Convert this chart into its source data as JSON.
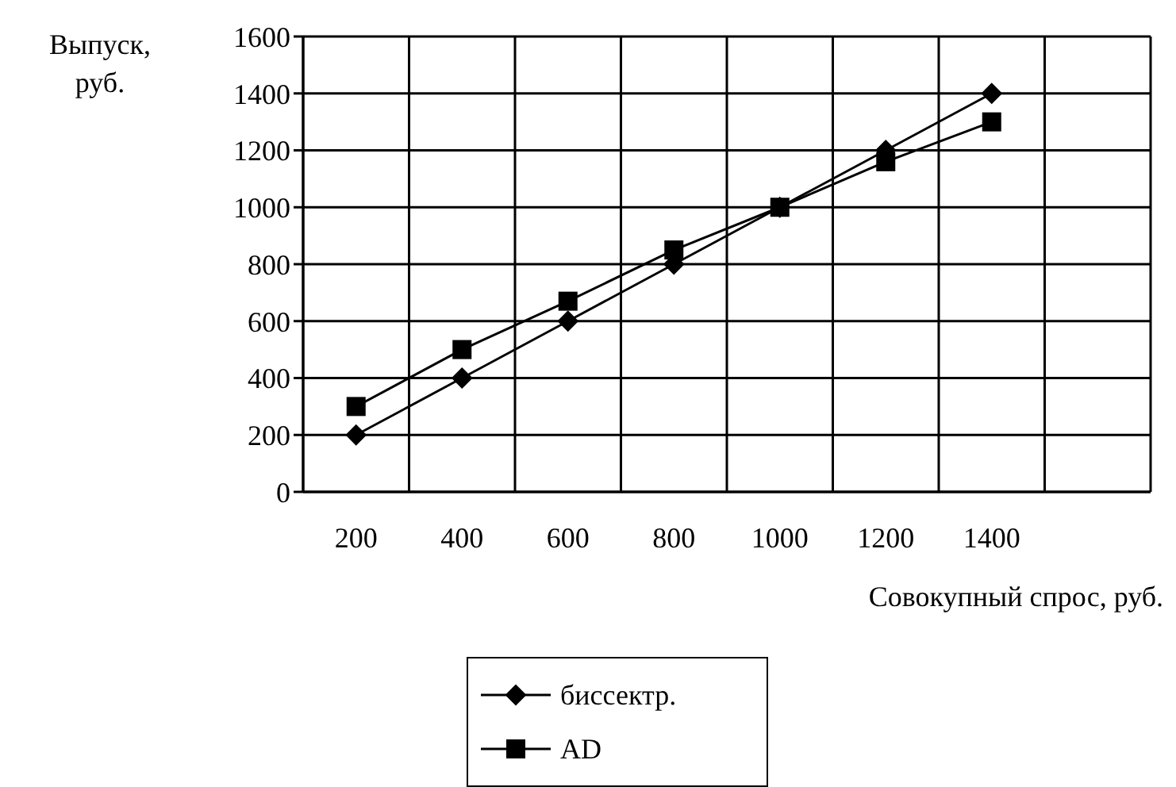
{
  "chart_data": {
    "type": "line",
    "xlabel": "Совокупный спрос, руб.",
    "ylabel": "Выпуск, руб.",
    "categories": [
      "200",
      "400",
      "600",
      "800",
      "1000",
      "1200",
      "1400",
      null
    ],
    "series": [
      {
        "name": "биссектр.",
        "color": "#000000",
        "marker": "diamond",
        "values": [
          200,
          400,
          600,
          800,
          1000,
          1200,
          1400,
          null
        ]
      },
      {
        "name": "AD",
        "color": "#000000",
        "marker": "square",
        "values": [
          300,
          500,
          670,
          850,
          1000,
          1160,
          1300,
          null
        ]
      }
    ],
    "ylim": [
      0,
      1600
    ],
    "yticks": [
      0,
      200,
      400,
      600,
      800,
      1000,
      1200,
      1400,
      1600
    ],
    "grid": true,
    "legend": "bottom"
  }
}
